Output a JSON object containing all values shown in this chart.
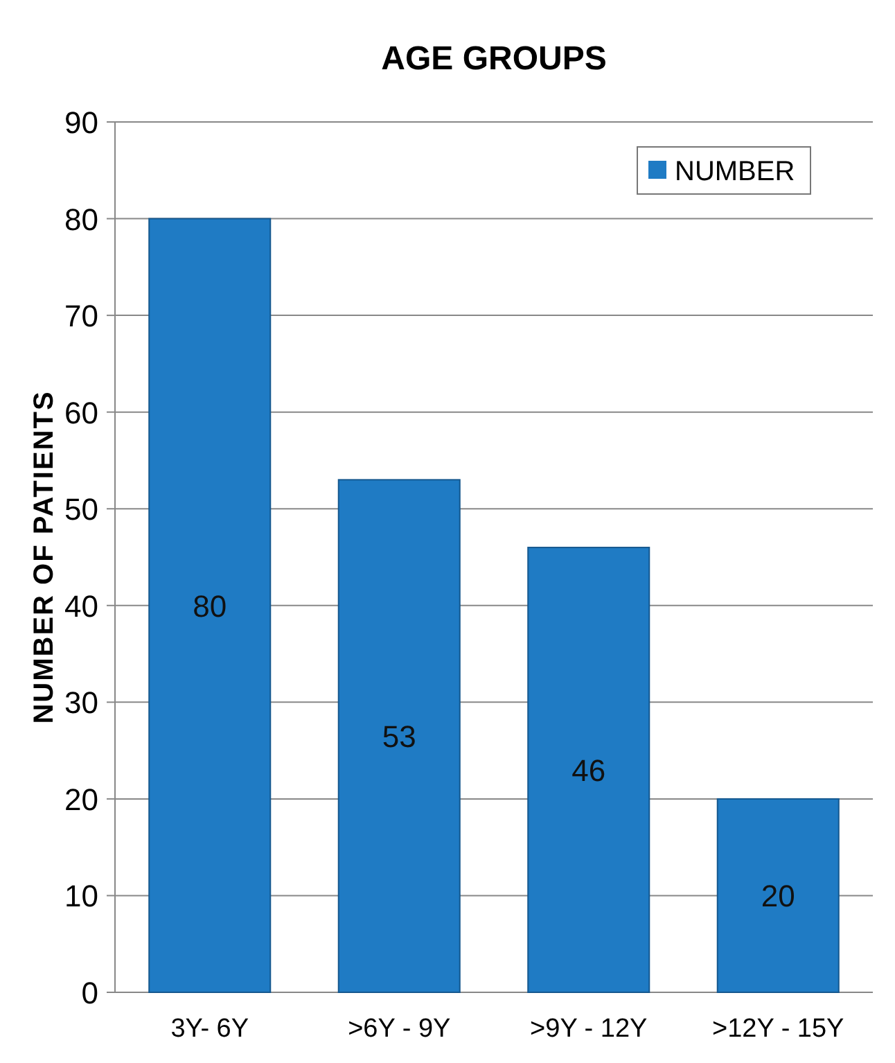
{
  "chart_data": {
    "type": "bar",
    "title": "AGE GROUPS",
    "ylabel": "NUMBER OF PATIENTS",
    "categories": [
      "3Y- 6Y",
      ">6Y - 9Y",
      ">9Y - 12Y",
      ">12Y - 15Y"
    ],
    "series": [
      {
        "name": "NUMBER",
        "color": "#1f7bc4",
        "values": [
          80,
          53,
          46,
          20
        ]
      }
    ],
    "ylim": [
      0,
      90
    ],
    "yticks": [
      0,
      10,
      20,
      30,
      40,
      50,
      60,
      70,
      80,
      90
    ],
    "grid": "y",
    "legend": "top right",
    "data_labels": true
  }
}
